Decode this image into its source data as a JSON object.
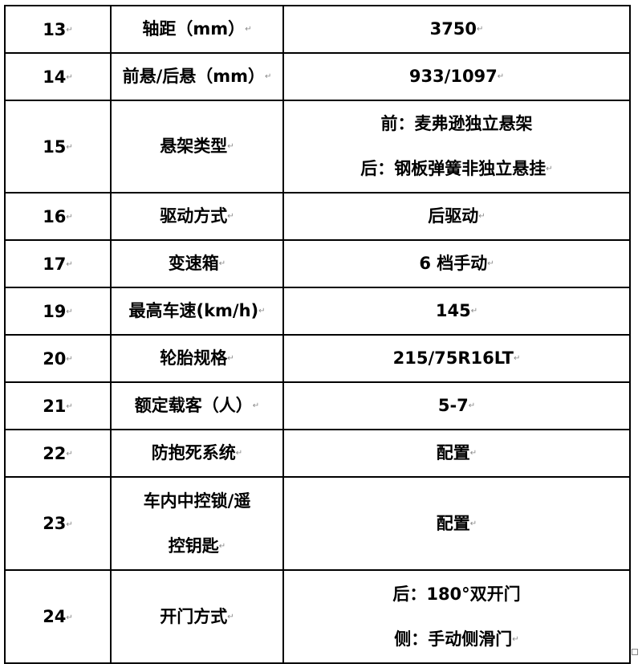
{
  "rows": [
    {
      "no": "13",
      "item": [
        "轴距（mm）"
      ],
      "value": [
        "3750"
      ]
    },
    {
      "no": "14",
      "item": [
        "前悬/后悬（mm）"
      ],
      "value": [
        "933/1097"
      ]
    },
    {
      "no": "15",
      "item": [
        "悬架类型"
      ],
      "value": [
        "前：麦弗逊独立悬架",
        "后：钢板弹簧非独立悬挂"
      ]
    },
    {
      "no": "16",
      "item": [
        "驱动方式"
      ],
      "value": [
        "后驱动"
      ]
    },
    {
      "no": "17",
      "item": [
        "变速箱"
      ],
      "value": [
        "6 档手动"
      ]
    },
    {
      "no": "19",
      "item": [
        "最高车速(km/h)"
      ],
      "value": [
        "145"
      ]
    },
    {
      "no": "20",
      "item": [
        "轮胎规格"
      ],
      "value": [
        "215/75R16LT"
      ]
    },
    {
      "no": "21",
      "item": [
        "额定载客（人）"
      ],
      "value": [
        "5-7"
      ]
    },
    {
      "no": "22",
      "item": [
        "防抱死系统"
      ],
      "value": [
        "配置"
      ]
    },
    {
      "no": "23",
      "item": [
        "车内中控锁/遥",
        "控钥匙"
      ],
      "value": [
        "配置"
      ]
    },
    {
      "no": "24",
      "item": [
        "开门方式"
      ],
      "value": [
        "后：180°双开门",
        "侧：手动侧滑门"
      ]
    }
  ]
}
